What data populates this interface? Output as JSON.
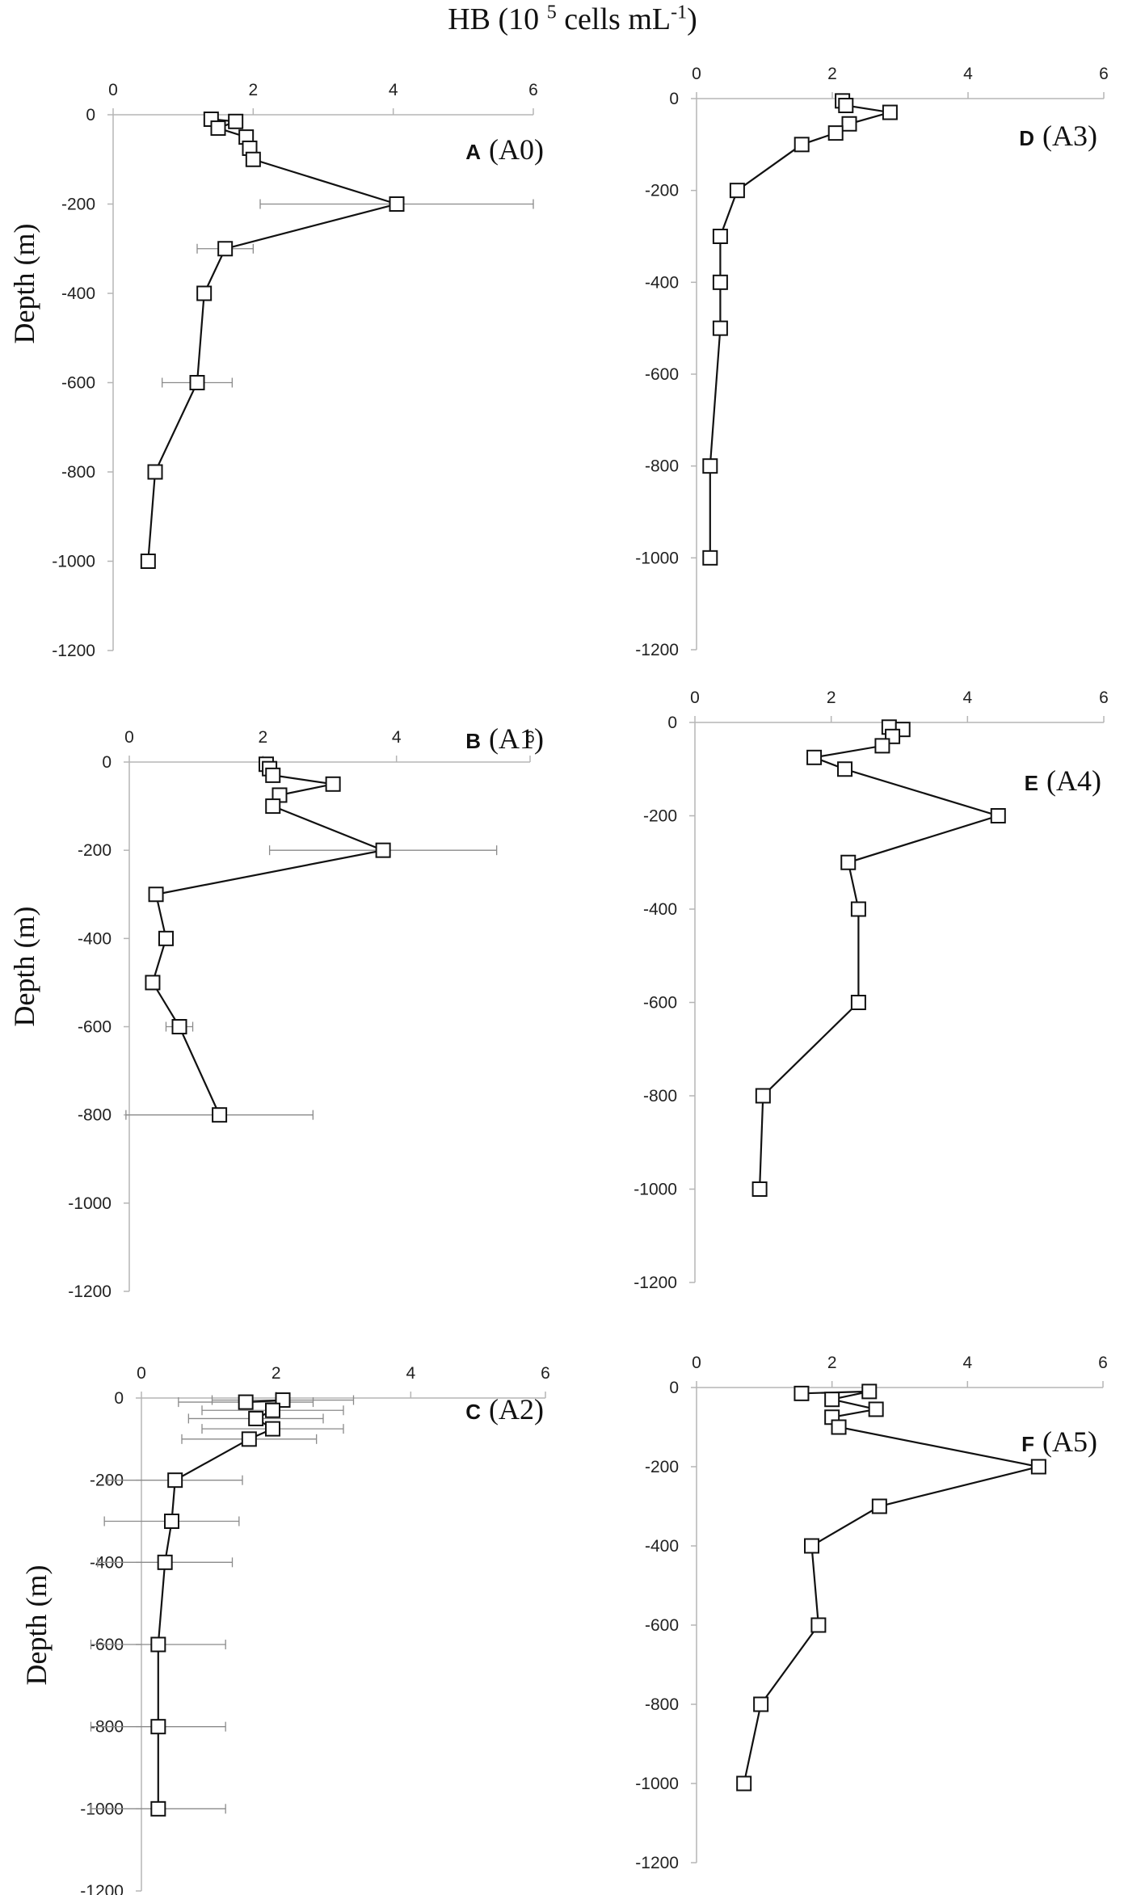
{
  "header": {
    "title_prefix": "HB (10",
    "title_exp": "5",
    "title_mid": " cells mL",
    "title_exp2": "-1",
    "title_suffix": ")"
  },
  "ylabel": "Depth (m)",
  "chart_data": [
    {
      "type": "line",
      "panel": "A",
      "site": "(A0)",
      "xlim": [
        0,
        6
      ],
      "ylim": [
        -1200,
        0
      ],
      "xticks": [
        0,
        2,
        4,
        6
      ],
      "yticks": [
        0,
        -200,
        -400,
        -600,
        -800,
        -1000,
        -1200
      ],
      "points": [
        {
          "x": 1.4,
          "y": -10
        },
        {
          "x": 1.75,
          "y": -15
        },
        {
          "x": 1.5,
          "y": -30
        },
        {
          "x": 1.9,
          "y": -50
        },
        {
          "x": 1.95,
          "y": -75
        },
        {
          "x": 2.0,
          "y": -100
        },
        {
          "x": 4.05,
          "y": -200,
          "err": 1.95
        },
        {
          "x": 1.6,
          "y": -300,
          "err": 0.4
        },
        {
          "x": 1.3,
          "y": -400
        },
        {
          "x": 1.2,
          "y": -600,
          "err": 0.5
        },
        {
          "x": 0.6,
          "y": -800
        },
        {
          "x": 0.5,
          "y": -1000
        }
      ]
    },
    {
      "type": "line",
      "panel": "B",
      "site": "(A1)",
      "xlim": [
        0,
        6
      ],
      "ylim": [
        -1200,
        0
      ],
      "xticks": [
        0,
        2,
        4,
        6
      ],
      "yticks": [
        0,
        -200,
        -400,
        -600,
        -800,
        -1000,
        -1200
      ],
      "points": [
        {
          "x": 2.05,
          "y": -5
        },
        {
          "x": 2.1,
          "y": -15
        },
        {
          "x": 2.15,
          "y": -30
        },
        {
          "x": 3.05,
          "y": -50
        },
        {
          "x": 2.25,
          "y": -75
        },
        {
          "x": 2.15,
          "y": -100
        },
        {
          "x": 3.8,
          "y": -200,
          "err": 1.7
        },
        {
          "x": 0.4,
          "y": -300
        },
        {
          "x": 0.55,
          "y": -400
        },
        {
          "x": 0.35,
          "y": -500
        },
        {
          "x": 0.75,
          "y": -600,
          "err": 0.2
        },
        {
          "x": 1.35,
          "y": -800,
          "err": 1.4
        }
      ]
    },
    {
      "type": "line",
      "panel": "C",
      "site": "(A2)",
      "xlim": [
        0,
        6
      ],
      "ylim": [
        -1200,
        0
      ],
      "xticks": [
        0,
        2,
        4,
        6
      ],
      "yticks": [
        0,
        -200,
        -400,
        -600,
        -800,
        -1000,
        -1200
      ],
      "points": [
        {
          "x": 1.55,
          "y": -10,
          "err": 1.0
        },
        {
          "x": 2.1,
          "y": -5,
          "err": 1.05
        },
        {
          "x": 1.95,
          "y": -30,
          "err": 1.05
        },
        {
          "x": 1.7,
          "y": -50,
          "err": 1.0
        },
        {
          "x": 1.95,
          "y": -75,
          "err": 1.05
        },
        {
          "x": 1.6,
          "y": -100,
          "err": 1.0
        },
        {
          "x": 0.5,
          "y": -200,
          "err": 1.0
        },
        {
          "x": 0.45,
          "y": -300,
          "err": 1.0
        },
        {
          "x": 0.35,
          "y": -400,
          "err": 1.0
        },
        {
          "x": 0.25,
          "y": -600,
          "err": 1.0
        },
        {
          "x": 0.25,
          "y": -800,
          "err": 1.0
        },
        {
          "x": 0.25,
          "y": -1000,
          "err": 1.0
        }
      ]
    },
    {
      "type": "line",
      "panel": "D",
      "site": "(A3)",
      "xlim": [
        0,
        6
      ],
      "ylim": [
        -1200,
        0
      ],
      "xticks": [
        0,
        2,
        4,
        6
      ],
      "yticks": [
        0,
        -200,
        -400,
        -600,
        -800,
        -1000,
        -1200
      ],
      "points": [
        {
          "x": 2.15,
          "y": -5
        },
        {
          "x": 2.2,
          "y": -15
        },
        {
          "x": 2.85,
          "y": -30
        },
        {
          "x": 2.25,
          "y": -55
        },
        {
          "x": 2.05,
          "y": -75
        },
        {
          "x": 1.55,
          "y": -100
        },
        {
          "x": 0.6,
          "y": -200
        },
        {
          "x": 0.35,
          "y": -300
        },
        {
          "x": 0.35,
          "y": -400
        },
        {
          "x": 0.35,
          "y": -500
        },
        {
          "x": 0.2,
          "y": -800
        },
        {
          "x": 0.2,
          "y": -1000
        }
      ]
    },
    {
      "type": "line",
      "panel": "E",
      "site": "(A4)",
      "xlim": [
        0,
        6
      ],
      "ylim": [
        -1200,
        0
      ],
      "xticks": [
        0,
        2,
        4,
        6
      ],
      "yticks": [
        0,
        -200,
        -400,
        -600,
        -800,
        -1000,
        -1200
      ],
      "points": [
        {
          "x": 2.85,
          "y": -10
        },
        {
          "x": 3.05,
          "y": -15
        },
        {
          "x": 2.9,
          "y": -30
        },
        {
          "x": 2.75,
          "y": -50
        },
        {
          "x": 1.75,
          "y": -75
        },
        {
          "x": 2.2,
          "y": -100
        },
        {
          "x": 4.45,
          "y": -200
        },
        {
          "x": 2.25,
          "y": -300
        },
        {
          "x": 2.4,
          "y": -400
        },
        {
          "x": 2.4,
          "y": -600
        },
        {
          "x": 1.0,
          "y": -800
        },
        {
          "x": 0.95,
          "y": -1000
        }
      ]
    },
    {
      "type": "line",
      "panel": "F",
      "site": "(A5)",
      "xlim": [
        0,
        6
      ],
      "ylim": [
        -1200,
        0
      ],
      "xticks": [
        0,
        2,
        4,
        6
      ],
      "yticks": [
        0,
        -200,
        -400,
        -600,
        -800,
        -1000,
        -1200
      ],
      "points": [
        {
          "x": 1.55,
          "y": -15
        },
        {
          "x": 2.55,
          "y": -10
        },
        {
          "x": 2.0,
          "y": -30
        },
        {
          "x": 2.65,
          "y": -55
        },
        {
          "x": 2.0,
          "y": -75
        },
        {
          "x": 2.1,
          "y": -100
        },
        {
          "x": 5.05,
          "y": -200
        },
        {
          "x": 2.7,
          "y": -300
        },
        {
          "x": 1.7,
          "y": -400
        },
        {
          "x": 1.8,
          "y": -600
        },
        {
          "x": 0.95,
          "y": -800
        },
        {
          "x": 0.7,
          "y": -1000
        }
      ]
    }
  ]
}
